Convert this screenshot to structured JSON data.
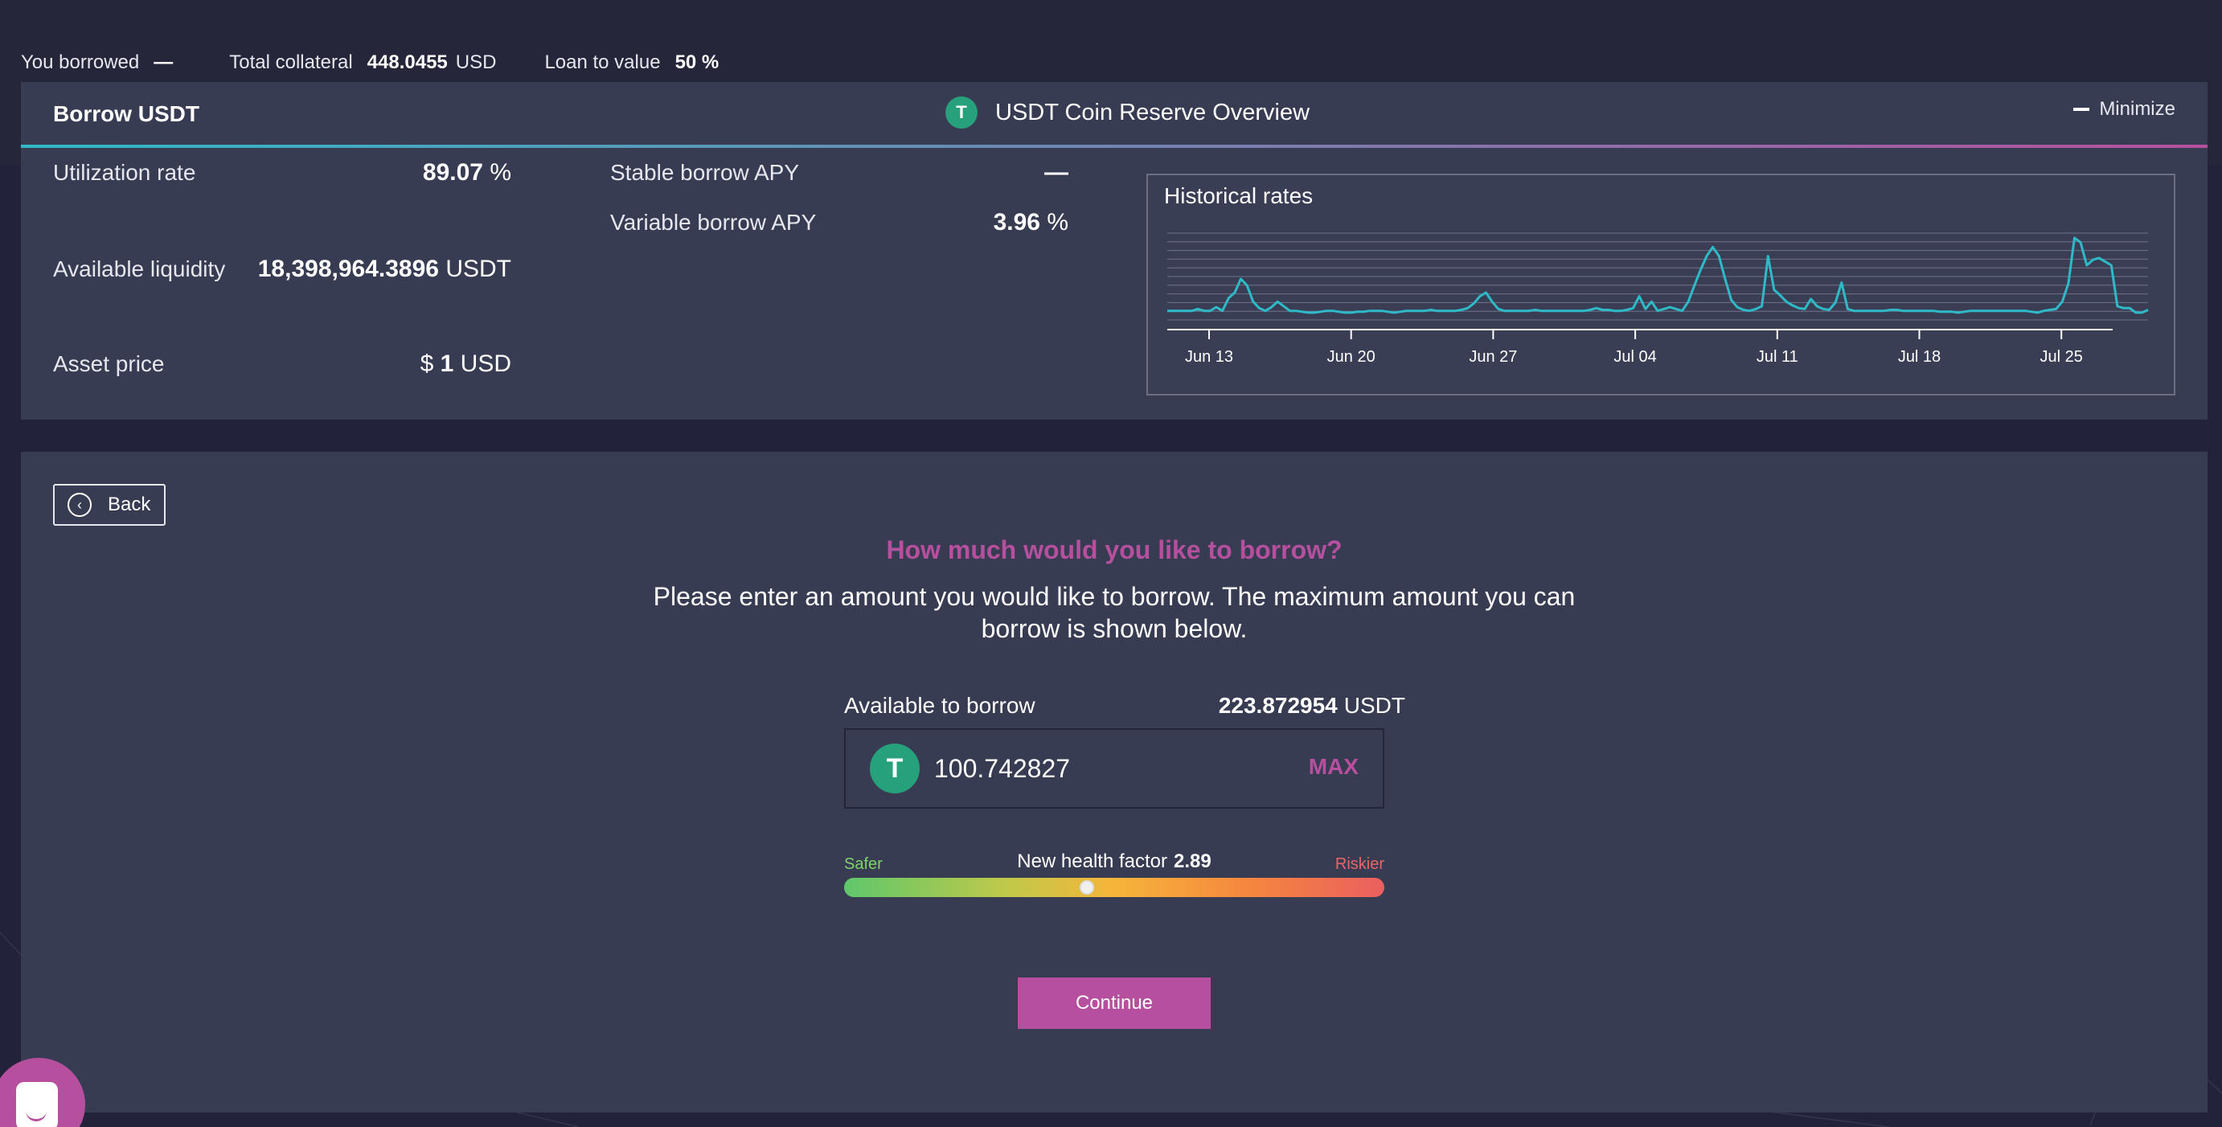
{
  "stats": {
    "borrowed_label": "You borrowed",
    "borrowed_value": "—",
    "collateral_label": "Total collateral",
    "collateral_value": "448.0455",
    "collateral_unit": "USD",
    "ltv_label": "Loan to value",
    "ltv_value": "50 %"
  },
  "overview": {
    "title": "Borrow USDT",
    "center_title": "USDT Coin Reserve Overview",
    "coin_glyph": "T",
    "minimize_label": "Minimize",
    "utilization_label": "Utilization rate",
    "utilization_value": "89.07",
    "utilization_unit": "%",
    "liquidity_label": "Available liquidity",
    "liquidity_value": "18,398,964.3896",
    "liquidity_unit": "USDT",
    "price_label": "Asset price",
    "price_prefix": "$",
    "price_value": "1",
    "price_unit": "USD",
    "stable_label": "Stable borrow APY",
    "stable_value": "—",
    "variable_label": "Variable borrow APY",
    "variable_value": "3.96",
    "variable_unit": "%"
  },
  "chart_data": {
    "type": "line",
    "title": "Historical rates",
    "tick_labels": [
      "Jun 13",
      "Jun 20",
      "Jun 27",
      "Jul 04",
      "Jul 11",
      "Jul 18",
      "Jul 25"
    ],
    "grid": true,
    "color": "#2ebac6",
    "values": [
      1,
      1,
      1,
      1,
      1,
      1.2,
      1,
      1,
      1.4,
      1,
      2.4,
      3,
      4.5,
      3.8,
      2,
      1.3,
      1,
      1.4,
      2,
      1.5,
      1,
      1,
      0.9,
      0.8,
      0.8,
      0.9,
      1,
      1,
      0.9,
      0.8,
      0.8,
      0.9,
      0.9,
      1,
      1,
      1,
      0.9,
      0.8,
      0.9,
      1,
      1,
      1,
      1,
      1.1,
      1,
      1,
      1,
      1,
      1.1,
      1.3,
      1.8,
      2.6,
      3,
      2,
      1.2,
      1,
      1,
      1,
      1,
      1,
      1.1,
      1,
      1,
      1,
      1,
      1,
      1,
      1,
      1,
      1.1,
      1.3,
      1.1,
      1.1,
      1,
      1,
      1.1,
      1.3,
      2.6,
      1.2,
      2,
      1,
      1.2,
      1.4,
      1.2,
      1,
      2,
      3.8,
      5.5,
      7,
      8,
      7,
      4.5,
      2.2,
      1.4,
      1.1,
      1,
      1.2,
      1.5,
      7,
      3.3,
      2.7,
      2,
      1.6,
      1.3,
      1.2,
      2.3,
      1.5,
      1.2,
      1.1,
      1.9,
      4.1,
      1.2,
      1,
      1,
      1,
      1,
      1,
      1,
      1.1,
      1.1,
      1,
      1,
      1,
      1,
      1,
      1,
      0.9,
      0.9,
      0.9,
      0.8,
      0.9,
      1,
      1,
      1,
      1,
      1,
      1,
      1,
      1,
      1,
      1,
      0.9,
      0.8,
      1,
      1.1,
      1.2,
      2,
      4,
      9,
      8.5,
      6,
      6.6,
      6.8,
      6.4,
      6,
      1.5,
      1.3,
      1.3,
      0.8,
      0.8,
      1.1
    ],
    "ylim": [
      0,
      10
    ]
  },
  "form": {
    "back_label": "Back",
    "question": "How much would you like to borrow?",
    "description": "Please enter an amount you would like to borrow. The maximum amount you can borrow is shown below.",
    "available_label": "Available to borrow",
    "available_value": "223.872954",
    "available_unit": "USDT",
    "amount_value": "100.742827",
    "max_label": "MAX",
    "coin_glyph": "T",
    "health_label": "New health factor",
    "health_value": "2.89",
    "safer_label": "Safer",
    "riskier_label": "Riskier",
    "health_position": 0.45,
    "continue_label": "Continue"
  }
}
